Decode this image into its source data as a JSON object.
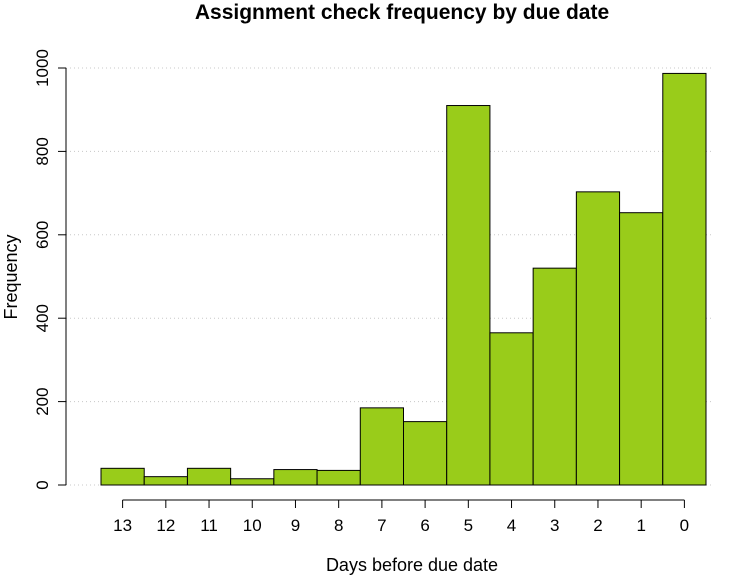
{
  "chart_data": {
    "type": "bar",
    "title": "Assignment check frequency by due date",
    "xlabel": "Days before due date",
    "ylabel": "Frequency",
    "categories": [
      "13",
      "12",
      "11",
      "10",
      "9",
      "8",
      "7",
      "6",
      "5",
      "4",
      "3",
      "2",
      "1",
      "0"
    ],
    "values": [
      40,
      20,
      40,
      15,
      37,
      35,
      185,
      152,
      910,
      365,
      520,
      703,
      653,
      987
    ],
    "ylim": [
      0,
      1000
    ],
    "yticks": [
      "0",
      "200",
      "400",
      "600",
      "800",
      "1000"
    ],
    "grid": true,
    "bar_color": "#99cc1a"
  }
}
